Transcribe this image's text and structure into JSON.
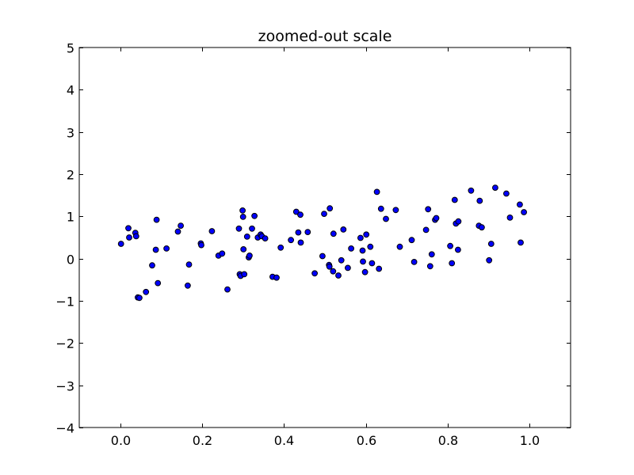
{
  "chart_data": {
    "type": "scatter",
    "title": "zoomed-out scale",
    "xlabel": "",
    "ylabel": "",
    "xlim": [
      -0.1,
      1.1
    ],
    "ylim": [
      -4,
      5
    ],
    "xticks": [
      0.0,
      0.2,
      0.4,
      0.6,
      0.8,
      1.0
    ],
    "xtick_labels": [
      "0.0",
      "0.2",
      "0.4",
      "0.6",
      "0.8",
      "1.0"
    ],
    "yticks": [
      -4,
      -3,
      -2,
      -1,
      0,
      1,
      2,
      3,
      4,
      5
    ],
    "ytick_labels": [
      "−4",
      "−3",
      "−2",
      "−1",
      "0",
      "1",
      "2",
      "3",
      "4",
      "5"
    ],
    "grid": false,
    "marker_color": "#0000ff",
    "marker_edge_color": "#000000",
    "series": [
      {
        "x": [
          0.002,
          0.02,
          0.022,
          0.037,
          0.039,
          0.043,
          0.047,
          0.063,
          0.078,
          0.087,
          0.089,
          0.092,
          0.113,
          0.141,
          0.148,
          0.165,
          0.168,
          0.197,
          0.198,
          0.224,
          0.24,
          0.249,
          0.262,
          0.29,
          0.292,
          0.294,
          0.299,
          0.3,
          0.301,
          0.303,
          0.31,
          0.314,
          0.316,
          0.322,
          0.328,
          0.336,
          0.343,
          0.346,
          0.354,
          0.372,
          0.382,
          0.392,
          0.417,
          0.43,
          0.435,
          0.44,
          0.441,
          0.458,
          0.475,
          0.494,
          0.498,
          0.51,
          0.511,
          0.512,
          0.52,
          0.521,
          0.533,
          0.54,
          0.545,
          0.556,
          0.564,
          0.587,
          0.592,
          0.593,
          0.598,
          0.601,
          0.611,
          0.615,
          0.627,
          0.632,
          0.637,
          0.649,
          0.673,
          0.683,
          0.712,
          0.718,
          0.747,
          0.752,
          0.757,
          0.761,
          0.769,
          0.772,
          0.806,
          0.81,
          0.817,
          0.82,
          0.825,
          0.826,
          0.857,
          0.876,
          0.878,
          0.883,
          0.901,
          0.906,
          0.916,
          0.943,
          0.952,
          0.976,
          0.978,
          0.986
        ],
        "y": [
          0.35,
          0.72,
          0.5,
          0.61,
          0.53,
          -0.92,
          -0.93,
          -0.79,
          -0.16,
          0.21,
          0.92,
          -0.58,
          0.24,
          0.64,
          0.78,
          -0.64,
          -0.14,
          0.36,
          0.32,
          0.65,
          0.07,
          0.12,
          -0.73,
          0.71,
          -0.37,
          -0.41,
          1.14,
          0.99,
          0.22,
          -0.37,
          0.52,
          0.03,
          0.07,
          0.71,
          1.01,
          0.5,
          0.57,
          0.53,
          0.48,
          -0.43,
          -0.45,
          0.26,
          0.44,
          1.11,
          0.62,
          1.04,
          0.38,
          0.63,
          -0.35,
          0.06,
          1.06,
          -0.15,
          -0.19,
          1.19,
          -0.3,
          0.59,
          -0.4,
          -0.04,
          0.69,
          -0.22,
          0.24,
          0.49,
          0.19,
          -0.07,
          -0.32,
          0.57,
          0.28,
          -0.11,
          1.58,
          -0.24,
          1.18,
          0.94,
          1.15,
          0.28,
          0.44,
          -0.08,
          0.68,
          1.17,
          -0.18,
          0.1,
          0.92,
          0.96,
          0.3,
          -0.11,
          1.39,
          0.83,
          0.21,
          0.88,
          1.61,
          0.78,
          1.37,
          0.74,
          -0.04,
          0.35,
          1.68,
          1.54,
          0.97,
          1.28,
          0.38,
          1.1
        ]
      }
    ]
  }
}
